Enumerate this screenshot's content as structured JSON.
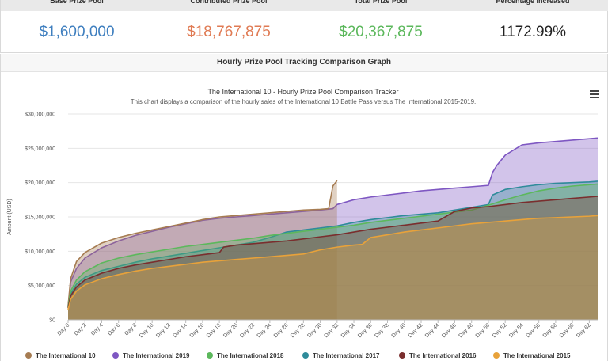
{
  "stats": [
    {
      "label": "Base Prize Pool",
      "value": "$1,600,000",
      "color": "#3f7fbf"
    },
    {
      "label": "Contributed Prize Pool",
      "value": "$18,767,875",
      "color": "#e07b54"
    },
    {
      "label": "Total Prize Pool",
      "value": "$20,367,875",
      "color": "#5cb85c"
    },
    {
      "label": "Percentage Increased",
      "value": "1172.99%",
      "color": "#222222"
    }
  ],
  "section_title": "Hourly Prize Pool Tracking Comparison Graph",
  "menu_icon": "hamburger-menu-icon",
  "chart_data": {
    "type": "area",
    "title": "The International 10 - Hourly Prize Pool Comparison Tracker",
    "subtitle": "This chart displays a comparison of the hourly sales of the International 10 Battle Pass versus The International 2015-2019.",
    "xlabel": "",
    "ylabel": "Amount (USD)",
    "ylim": [
      0,
      30000000
    ],
    "xlim": [
      0,
      63
    ],
    "y_ticks": [
      "$0",
      "$5,000,000",
      "$10,000,000",
      "$15,000,000",
      "$20,000,000",
      "$25,000,000",
      "$30,000,000"
    ],
    "x_ticks": [
      "Day 0",
      "Day 2",
      "Day 4",
      "Day 6",
      "Day 8",
      "Day 10",
      "Day 12",
      "Day 14",
      "Day 16",
      "Day 18",
      "Day 20",
      "Day 22",
      "Day 24",
      "Day 26",
      "Day 28",
      "Day 30",
      "Day 32",
      "Day 34",
      "Day 36",
      "Day 38",
      "Day 40",
      "Day 42",
      "Day 44",
      "Day 46",
      "Day 48",
      "Day 50",
      "Day 52",
      "Day 54",
      "Day 56",
      "Day 58",
      "Day 60",
      "Day 62"
    ],
    "grid": true,
    "legend_position": "bottom",
    "series": [
      {
        "name": "The International 2019",
        "color": "#7e57c2",
        "x": [
          0,
          0.3,
          1,
          2,
          4,
          6,
          8,
          10,
          12,
          14,
          16,
          18,
          20,
          22,
          24,
          26,
          28,
          30,
          31.5,
          32,
          34,
          36,
          38,
          40,
          42,
          44,
          46,
          48,
          50,
          50.5,
          51,
          52,
          54,
          56,
          58,
          60,
          62,
          63
        ],
        "y": [
          2000000,
          5500000,
          7500000,
          9000000,
          10500000,
          11500000,
          12300000,
          12900000,
          13500000,
          14000000,
          14500000,
          14800000,
          15000000,
          15200000,
          15400000,
          15600000,
          15800000,
          16000000,
          16200000,
          16800000,
          17500000,
          17900000,
          18200000,
          18500000,
          18800000,
          19000000,
          19200000,
          19400000,
          19600000,
          21500000,
          22500000,
          24000000,
          25500000,
          25800000,
          26000000,
          26200000,
          26400000,
          26500000
        ]
      },
      {
        "name": "The International 10",
        "color": "#a67c52",
        "x": [
          0,
          0.3,
          1,
          2,
          4,
          6,
          8,
          10,
          12,
          14,
          16,
          18,
          20,
          22,
          24,
          26,
          28,
          30,
          31,
          31.5,
          32
        ],
        "y": [
          2000000,
          6000000,
          8500000,
          9800000,
          11200000,
          12000000,
          12600000,
          13100000,
          13600000,
          14100000,
          14600000,
          15000000,
          15200000,
          15400000,
          15600000,
          15800000,
          16000000,
          16100000,
          16200000,
          19500000,
          20300000
        ]
      },
      {
        "name": "The International 2017",
        "color": "#2e8b9a",
        "x": [
          0,
          0.3,
          1,
          2,
          4,
          6,
          8,
          10,
          12,
          14,
          16,
          18,
          20,
          22,
          24,
          26,
          28,
          30,
          32,
          34,
          36,
          38,
          40,
          42,
          44,
          46,
          48,
          50,
          50.5,
          52,
          54,
          56,
          58,
          60,
          62,
          63
        ],
        "y": [
          1800000,
          3800000,
          5200000,
          6200000,
          7200000,
          7800000,
          8400000,
          8900000,
          9300000,
          9700000,
          10100000,
          10500000,
          10900000,
          11300000,
          12000000,
          12800000,
          13100000,
          13400000,
          13700000,
          14200000,
          14600000,
          14900000,
          15200000,
          15400000,
          15600000,
          16000000,
          16400000,
          16800000,
          18200000,
          19000000,
          19400000,
          19700000,
          19900000,
          20000000,
          20100000,
          20200000
        ]
      },
      {
        "name": "The International 2018",
        "color": "#5cb85c",
        "x": [
          0,
          0.3,
          1,
          2,
          4,
          6,
          8,
          10,
          12,
          14,
          16,
          18,
          20,
          22,
          24,
          26,
          28,
          30,
          32,
          34,
          36,
          38,
          40,
          42,
          44,
          46,
          48,
          50,
          52,
          54,
          56,
          58,
          60,
          62,
          63
        ],
        "y": [
          1800000,
          4200000,
          5800000,
          7000000,
          8300000,
          9000000,
          9500000,
          9900000,
          10300000,
          10700000,
          11000000,
          11300000,
          11600000,
          11900000,
          12300000,
          12600000,
          12900000,
          13200000,
          13500000,
          13800000,
          14200000,
          14500000,
          14800000,
          15100000,
          15400000,
          15700000,
          16000000,
          16700000,
          17500000,
          18200000,
          18800000,
          19200000,
          19500000,
          19700000,
          19800000
        ]
      },
      {
        "name": "The International 2016",
        "color": "#7a2e2e",
        "x": [
          0,
          0.3,
          1,
          2,
          4,
          6,
          8,
          10,
          12,
          14,
          16,
          18,
          18.5,
          20,
          22,
          24,
          26,
          28,
          30,
          32,
          34,
          36,
          38,
          40,
          42,
          44,
          46,
          48,
          50,
          52,
          54,
          56,
          58,
          60,
          62,
          63
        ],
        "y": [
          1700000,
          3500000,
          4800000,
          5800000,
          6800000,
          7500000,
          8000000,
          8400000,
          8800000,
          9200000,
          9500000,
          9800000,
          10600000,
          10900000,
          11100000,
          11300000,
          11500000,
          11800000,
          12100000,
          12400000,
          12800000,
          13200000,
          13500000,
          13800000,
          14100000,
          14400000,
          15800000,
          16300000,
          16500000,
          16800000,
          17100000,
          17300000,
          17500000,
          17700000,
          17900000,
          18000000
        ]
      },
      {
        "name": "The International 2015",
        "color": "#e8a23a",
        "x": [
          0,
          0.3,
          1,
          2,
          4,
          6,
          8,
          10,
          12,
          14,
          16,
          18,
          20,
          22,
          24,
          26,
          28,
          30,
          32,
          34,
          35,
          36,
          38,
          40,
          42,
          44,
          46,
          48,
          50,
          52,
          54,
          56,
          58,
          60,
          62,
          63
        ],
        "y": [
          1500000,
          3000000,
          4200000,
          5100000,
          6000000,
          6600000,
          7100000,
          7500000,
          7800000,
          8100000,
          8400000,
          8600000,
          8800000,
          9000000,
          9200000,
          9400000,
          9600000,
          10200000,
          10600000,
          10900000,
          11000000,
          12000000,
          12400000,
          12800000,
          13100000,
          13400000,
          13700000,
          14000000,
          14200000,
          14400000,
          14600000,
          14800000,
          14900000,
          15000000,
          15100000,
          15200000
        ]
      }
    ],
    "legend": [
      {
        "name": "The International 10",
        "color": "#a67c52"
      },
      {
        "name": "The International 2019",
        "color": "#7e57c2"
      },
      {
        "name": "The International 2018",
        "color": "#5cb85c"
      },
      {
        "name": "The International 2017",
        "color": "#2e8b9a"
      },
      {
        "name": "The International 2016",
        "color": "#7a2e2e"
      },
      {
        "name": "The International 2015",
        "color": "#e8a23a"
      }
    ]
  }
}
